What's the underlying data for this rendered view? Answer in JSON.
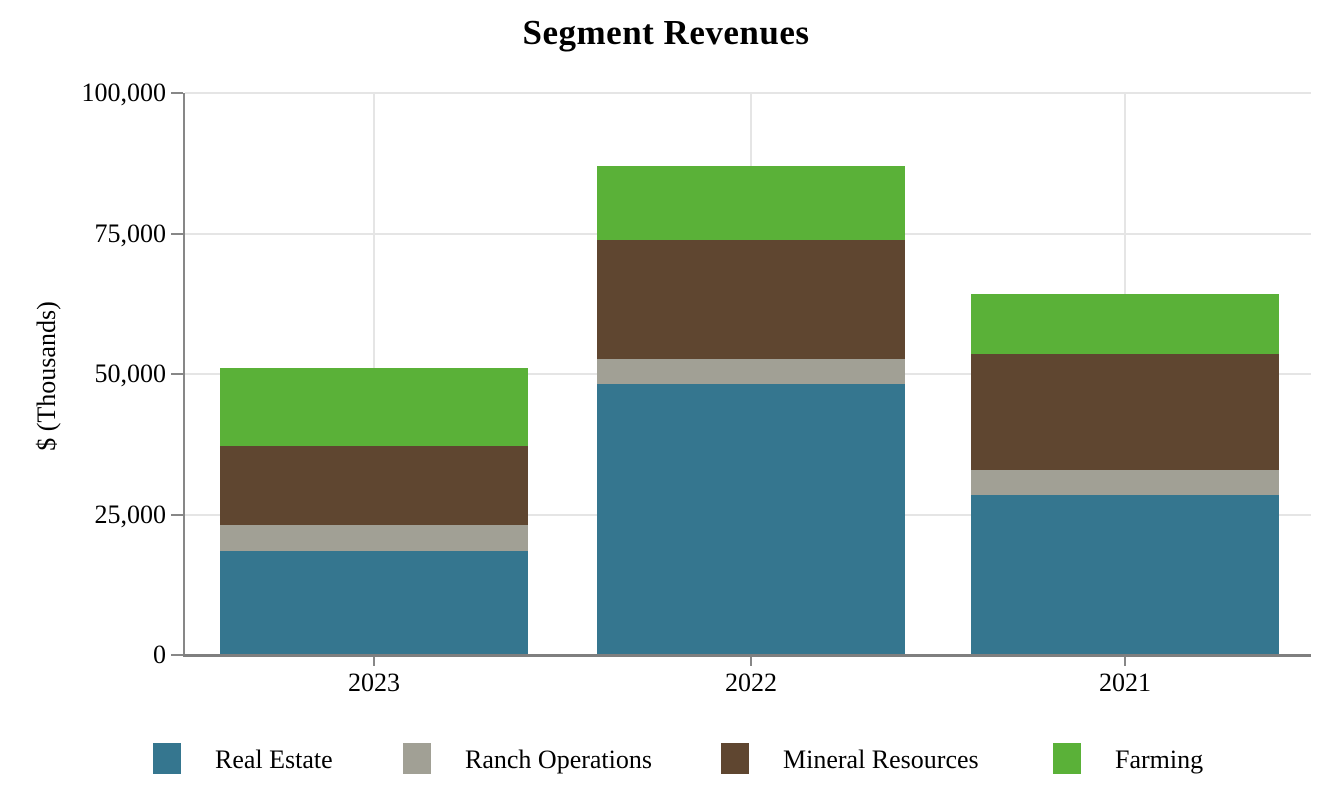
{
  "title": "Segment Revenues",
  "colors": {
    "background": "#FFFFFF",
    "axis": "#7F7F7F",
    "gridline": "#E5E5E5",
    "text": "#000000",
    "real_estate": "#35768F",
    "ranch_operations": "#A1A095",
    "mineral_resources": "#5F4630",
    "farming": "#5AB138"
  },
  "chart_data": {
    "type": "bar",
    "stacked": true,
    "title": "Segment Revenues",
    "xlabel": "",
    "ylabel": "$ (Thousands)",
    "categories": [
      "2023",
      "2022",
      "2021"
    ],
    "series": [
      {
        "name": "Real Estate",
        "color": "#35768F",
        "values": [
          18500,
          48150,
          28550
        ]
      },
      {
        "name": "Ranch Operations",
        "color": "#A1A095",
        "values": [
          4550,
          4500,
          4350
        ]
      },
      {
        "name": "Mineral Resources",
        "color": "#5F4630",
        "values": [
          14200,
          21250,
          20700
        ]
      },
      {
        "name": "Farming",
        "color": "#5AB138",
        "values": [
          13850,
          13100,
          10700
        ]
      }
    ],
    "totals": [
      51100,
      87000,
      64300
    ],
    "ylim": [
      0,
      100000
    ],
    "yticks": [
      {
        "value": 0,
        "label": "0"
      },
      {
        "value": 25000,
        "label": "25,000"
      },
      {
        "value": 50000,
        "label": "50,000"
      },
      {
        "value": 75000,
        "label": "75,000"
      },
      {
        "value": 100000,
        "label": "100,000"
      }
    ],
    "grid": true,
    "legend_position": "bottom"
  }
}
